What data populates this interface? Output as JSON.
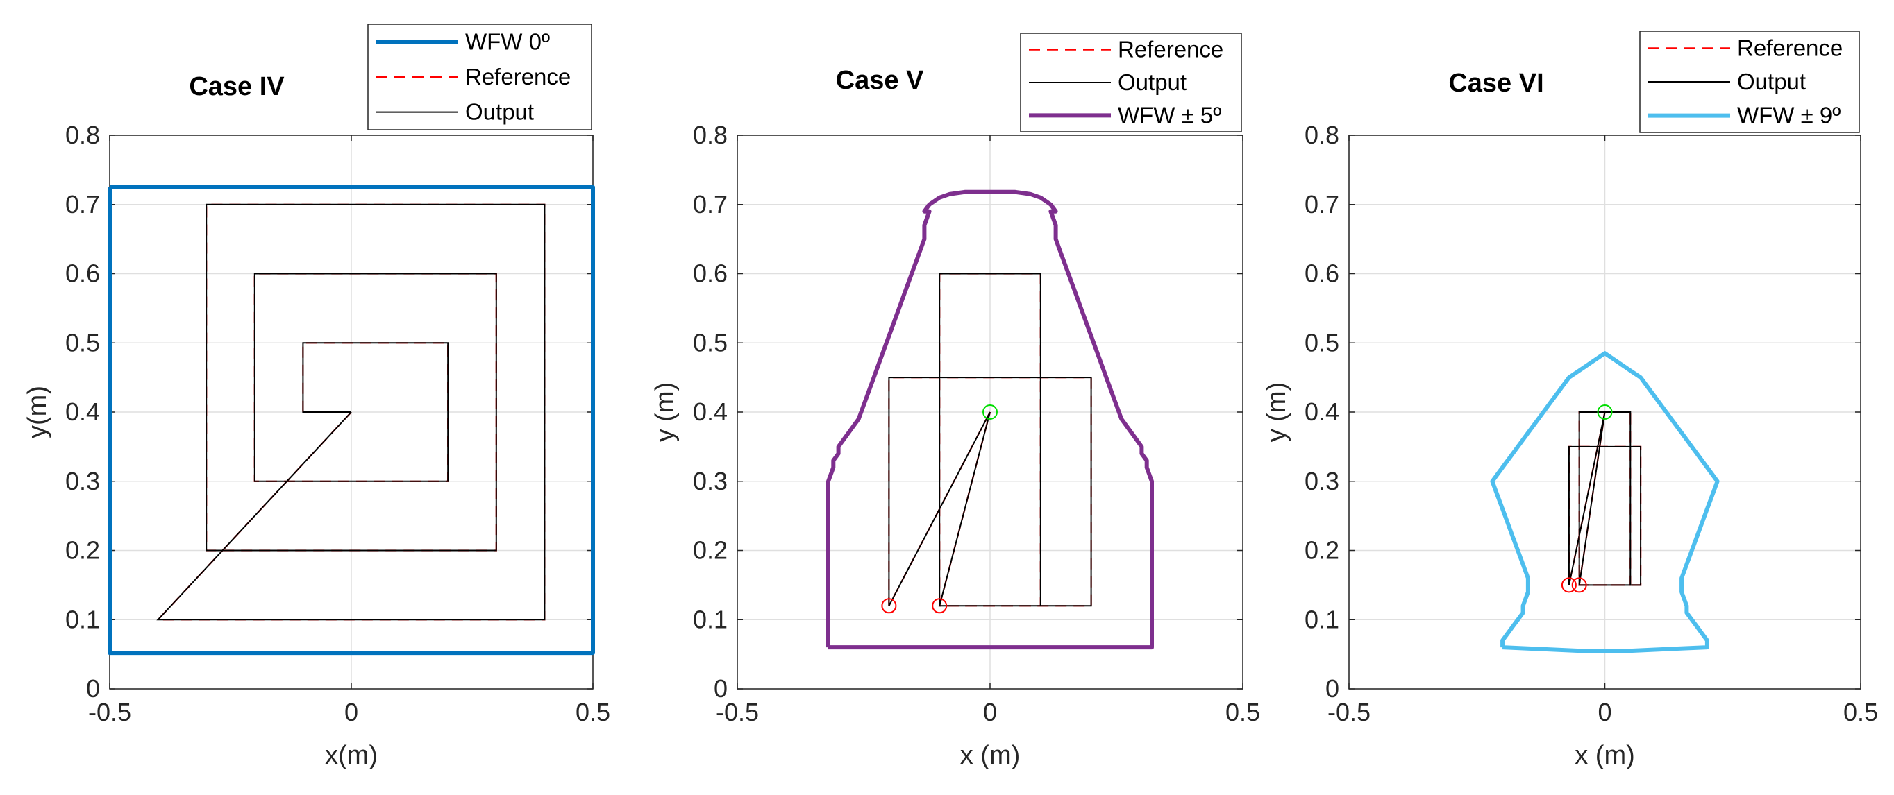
{
  "chart_data": [
    {
      "type": "line",
      "title": "Case IV",
      "xlabel": "x(m)",
      "ylabel": "y(m)",
      "xlim": [
        -0.5,
        0.5
      ],
      "ylim": [
        0,
        0.8
      ],
      "xticks": [
        "-0.5",
        "0",
        "0.5"
      ],
      "yticks": [
        "0",
        "0.1",
        "0.2",
        "0.3",
        "0.4",
        "0.5",
        "0.6",
        "0.7",
        "0.8"
      ],
      "grid": true,
      "legend_position": "top-right",
      "legend": [
        "WFW 0º",
        "Reference",
        "Output"
      ],
      "series": [
        {
          "name": "WFW 0º",
          "color": "#0072BD",
          "style": "solid-thick",
          "x": [
            -0.5,
            0.5,
            0.5,
            -0.5,
            -0.5
          ],
          "y": [
            0.725,
            0.725,
            0.052,
            0.052,
            0.725
          ]
        },
        {
          "name": "Reference",
          "color": "#FF0000",
          "style": "dashed",
          "x": [
            0,
            -0.4,
            0.4,
            0.4,
            -0.3,
            -0.3,
            0.3,
            0.3,
            -0.2,
            -0.2,
            0.2,
            0.2,
            -0.1,
            -0.1,
            0
          ],
          "y": [
            0.4,
            0.1,
            0.1,
            0.7,
            0.7,
            0.2,
            0.2,
            0.6,
            0.6,
            0.3,
            0.3,
            0.5,
            0.5,
            0.4,
            0.4
          ]
        },
        {
          "name": "Output",
          "color": "#000000",
          "style": "solid-thin",
          "x": [
            0,
            -0.4,
            0.4,
            0.4,
            -0.3,
            -0.3,
            0.3,
            0.3,
            -0.2,
            -0.2,
            0.2,
            0.2,
            -0.1,
            -0.1,
            0
          ],
          "y": [
            0.4,
            0.1,
            0.1,
            0.7,
            0.7,
            0.2,
            0.2,
            0.6,
            0.6,
            0.3,
            0.3,
            0.5,
            0.5,
            0.4,
            0.4
          ]
        }
      ],
      "markers": []
    },
    {
      "type": "line",
      "title": "Case V",
      "xlabel": "x (m)",
      "ylabel": "y (m)",
      "xlim": [
        -0.5,
        0.5
      ],
      "ylim": [
        0,
        0.8
      ],
      "xticks": [
        "-0.5",
        "0",
        "0.5"
      ],
      "yticks": [
        "0",
        "0.1",
        "0.2",
        "0.3",
        "0.4",
        "0.5",
        "0.6",
        "0.7",
        "0.8"
      ],
      "grid": true,
      "legend_position": "top-right",
      "legend": [
        "Reference",
        "Output",
        "WFW ± 5º"
      ],
      "series": [
        {
          "name": "Reference",
          "color": "#FF0000",
          "style": "dashed",
          "x": [
            0,
            -0.2,
            -0.2,
            0.2,
            0.2,
            -0.1,
            -0.1,
            0.1,
            0.1,
            -0.1,
            0
          ],
          "y": [
            0.4,
            0.12,
            0.45,
            0.45,
            0.12,
            0.12,
            0.6,
            0.6,
            0.12,
            0.12,
            0.4
          ]
        },
        {
          "name": "Output",
          "color": "#000000",
          "style": "solid-thin",
          "x": [
            0,
            -0.2,
            -0.2,
            0.2,
            0.2,
            -0.1,
            -0.1,
            0.1,
            0.1,
            -0.1,
            0
          ],
          "y": [
            0.4,
            0.12,
            0.45,
            0.45,
            0.12,
            0.12,
            0.6,
            0.6,
            0.12,
            0.12,
            0.4
          ]
        },
        {
          "name": "WFW ± 5º",
          "color": "#7E2F8E",
          "style": "solid-thick",
          "x": [
            -0.32,
            0.32,
            0.32,
            0.31,
            0.31,
            0.3,
            0.3,
            0.29,
            0.28,
            0.27,
            0.26,
            0.25,
            0.24,
            0.23,
            0.22,
            0.21,
            0.2,
            0.19,
            0.18,
            0.17,
            0.16,
            0.15,
            0.14,
            0.13,
            0.13,
            0.12,
            0.12,
            0.13,
            0.13,
            0.12,
            0.1,
            0.08,
            0.05,
            0.0,
            -0.05,
            -0.08,
            -0.1,
            -0.12,
            -0.13,
            -0.13,
            -0.12,
            -0.12,
            -0.13,
            -0.13,
            -0.14,
            -0.15,
            -0.16,
            -0.17,
            -0.18,
            -0.19,
            -0.2,
            -0.21,
            -0.22,
            -0.23,
            -0.24,
            -0.25,
            -0.26,
            -0.27,
            -0.28,
            -0.29,
            -0.3,
            -0.3,
            -0.31,
            -0.31,
            -0.32,
            -0.32
          ],
          "y": [
            0.06,
            0.06,
            0.3,
            0.32,
            0.33,
            0.34,
            0.35,
            0.36,
            0.37,
            0.38,
            0.39,
            0.41,
            0.43,
            0.45,
            0.47,
            0.49,
            0.51,
            0.53,
            0.55,
            0.57,
            0.59,
            0.61,
            0.63,
            0.65,
            0.67,
            0.69,
            0.69,
            0.69,
            0.69,
            0.7,
            0.71,
            0.715,
            0.718,
            0.718,
            0.718,
            0.715,
            0.71,
            0.7,
            0.69,
            0.69,
            0.69,
            0.69,
            0.67,
            0.65,
            0.63,
            0.61,
            0.59,
            0.57,
            0.55,
            0.53,
            0.51,
            0.49,
            0.47,
            0.45,
            0.43,
            0.41,
            0.39,
            0.38,
            0.37,
            0.36,
            0.35,
            0.34,
            0.33,
            0.32,
            0.3,
            0.06
          ]
        }
      ],
      "markers": [
        {
          "color": "#00DD00",
          "x": 0,
          "y": 0.4
        },
        {
          "color": "#FF0000",
          "x": -0.2,
          "y": 0.12
        },
        {
          "color": "#FF0000",
          "x": -0.1,
          "y": 0.12
        }
      ]
    },
    {
      "type": "line",
      "title": "Case VI",
      "xlabel": "x (m)",
      "ylabel": "y (m)",
      "xlim": [
        -0.5,
        0.5
      ],
      "ylim": [
        0,
        0.8
      ],
      "xticks": [
        "-0.5",
        "0",
        "0.5"
      ],
      "yticks": [
        "0",
        "0.1",
        "0.2",
        "0.3",
        "0.4",
        "0.5",
        "0.6",
        "0.7",
        "0.8"
      ],
      "grid": true,
      "legend_position": "top-right",
      "legend": [
        "Reference",
        "Output",
        "WFW ± 9º"
      ],
      "series": [
        {
          "name": "Reference",
          "color": "#FF0000",
          "style": "dashed",
          "x": [
            0,
            -0.07,
            -0.07,
            0.07,
            0.07,
            -0.05,
            -0.05,
            0.05,
            0.05,
            -0.05,
            0
          ],
          "y": [
            0.4,
            0.15,
            0.35,
            0.35,
            0.15,
            0.15,
            0.4,
            0.4,
            0.15,
            0.15,
            0.4
          ]
        },
        {
          "name": "Output",
          "color": "#000000",
          "style": "solid-thin",
          "x": [
            0,
            -0.07,
            -0.07,
            0.07,
            0.07,
            -0.05,
            -0.05,
            0.05,
            0.05,
            -0.05,
            0
          ],
          "y": [
            0.4,
            0.15,
            0.35,
            0.35,
            0.15,
            0.15,
            0.4,
            0.4,
            0.15,
            0.15,
            0.4
          ]
        },
        {
          "name": "WFW ± 9º",
          "color": "#4DBEEE",
          "style": "solid-thick",
          "x": [
            -0.2,
            -0.05,
            0.05,
            0.2,
            0.2,
            0.19,
            0.18,
            0.17,
            0.16,
            0.16,
            0.15,
            0.15,
            0.16,
            0.17,
            0.18,
            0.19,
            0.2,
            0.21,
            0.22,
            0.21,
            0.19,
            0.17,
            0.15,
            0.13,
            0.11,
            0.09,
            0.07,
            0.05,
            0.03,
            0.01,
            0.0,
            -0.01,
            -0.03,
            -0.05,
            -0.07,
            -0.09,
            -0.11,
            -0.13,
            -0.15,
            -0.17,
            -0.19,
            -0.21,
            -0.22,
            -0.21,
            -0.2,
            -0.19,
            -0.18,
            -0.17,
            -0.16,
            -0.15,
            -0.15,
            -0.16,
            -0.16,
            -0.17,
            -0.18,
            -0.19,
            -0.2,
            -0.2
          ],
          "y": [
            0.06,
            0.055,
            0.055,
            0.06,
            0.07,
            0.08,
            0.09,
            0.1,
            0.11,
            0.12,
            0.14,
            0.16,
            0.18,
            0.2,
            0.22,
            0.24,
            0.26,
            0.28,
            0.3,
            0.31,
            0.33,
            0.35,
            0.37,
            0.39,
            0.41,
            0.43,
            0.45,
            0.46,
            0.47,
            0.48,
            0.485,
            0.48,
            0.47,
            0.46,
            0.45,
            0.43,
            0.41,
            0.39,
            0.37,
            0.35,
            0.33,
            0.31,
            0.3,
            0.28,
            0.26,
            0.24,
            0.22,
            0.2,
            0.18,
            0.16,
            0.14,
            0.12,
            0.11,
            0.1,
            0.09,
            0.08,
            0.07,
            0.06
          ]
        }
      ],
      "markers": [
        {
          "color": "#00DD00",
          "x": 0,
          "y": 0.4
        },
        {
          "color": "#FF0000",
          "x": -0.07,
          "y": 0.15
        },
        {
          "color": "#FF0000",
          "x": -0.05,
          "y": 0.15
        }
      ]
    }
  ]
}
